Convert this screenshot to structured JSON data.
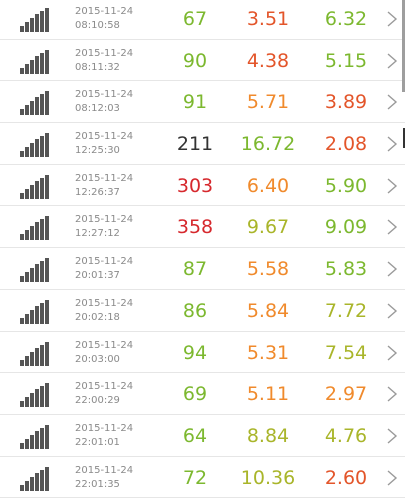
{
  "colors": {
    "green": "#7cb82f",
    "olive": "#a9b52a",
    "orange": "#f08a2c",
    "red_orange": "#e3552a",
    "red": "#d6282d",
    "dark": "#333333",
    "signal_gray": "#555555"
  },
  "list": {
    "rows": [
      {
        "date": "2015-11-24",
        "time": "08:10:58",
        "v1": "67",
        "v2": "3.51",
        "v3": "6.32",
        "c1": "#7cb82f",
        "c2": "#e3552a",
        "c3": "#7cb82f"
      },
      {
        "date": "2015-11-24",
        "time": "08:11:32",
        "v1": "90",
        "v2": "4.38",
        "v3": "5.15",
        "c1": "#7cb82f",
        "c2": "#e3552a",
        "c3": "#7cb82f"
      },
      {
        "date": "2015-11-24",
        "time": "08:12:03",
        "v1": "91",
        "v2": "5.71",
        "v3": "3.89",
        "c1": "#7cb82f",
        "c2": "#f08a2c",
        "c3": "#e3552a"
      },
      {
        "date": "2015-11-24",
        "time": "12:25:30",
        "v1": "211",
        "v2": "16.72",
        "v3": "2.08",
        "c1": "#333333",
        "c2": "#7cb82f",
        "c3": "#e3552a"
      },
      {
        "date": "2015-11-24",
        "time": "12:26:37",
        "v1": "303",
        "v2": "6.40",
        "v3": "5.90",
        "c1": "#d6282d",
        "c2": "#f08a2c",
        "c3": "#7cb82f"
      },
      {
        "date": "2015-11-24",
        "time": "12:27:12",
        "v1": "358",
        "v2": "9.67",
        "v3": "9.09",
        "c1": "#d6282d",
        "c2": "#a9b52a",
        "c3": "#7cb82f"
      },
      {
        "date": "2015-11-24",
        "time": "20:01:37",
        "v1": "87",
        "v2": "5.58",
        "v3": "5.83",
        "c1": "#7cb82f",
        "c2": "#f08a2c",
        "c3": "#7cb82f"
      },
      {
        "date": "2015-11-24",
        "time": "20:02:18",
        "v1": "86",
        "v2": "5.84",
        "v3": "7.72",
        "c1": "#7cb82f",
        "c2": "#f08a2c",
        "c3": "#a9b52a"
      },
      {
        "date": "2015-11-24",
        "time": "20:03:00",
        "v1": "94",
        "v2": "5.31",
        "v3": "7.54",
        "c1": "#7cb82f",
        "c2": "#f08a2c",
        "c3": "#a9b52a"
      },
      {
        "date": "2015-11-24",
        "time": "22:00:29",
        "v1": "69",
        "v2": "5.11",
        "v3": "2.97",
        "c1": "#7cb82f",
        "c2": "#f08a2c",
        "c3": "#f08a2c"
      },
      {
        "date": "2015-11-24",
        "time": "22:01:01",
        "v1": "64",
        "v2": "8.84",
        "v3": "4.76",
        "c1": "#7cb82f",
        "c2": "#a9b52a",
        "c3": "#a9b52a"
      },
      {
        "date": "2015-11-24",
        "time": "22:01:35",
        "v1": "72",
        "v2": "10.36",
        "v3": "2.60",
        "c1": "#7cb82f",
        "c2": "#a9b52a",
        "c3": "#e3552a"
      }
    ]
  },
  "icons": {
    "signal": "signal-bars-icon",
    "chevron": "chevron-right-icon"
  }
}
